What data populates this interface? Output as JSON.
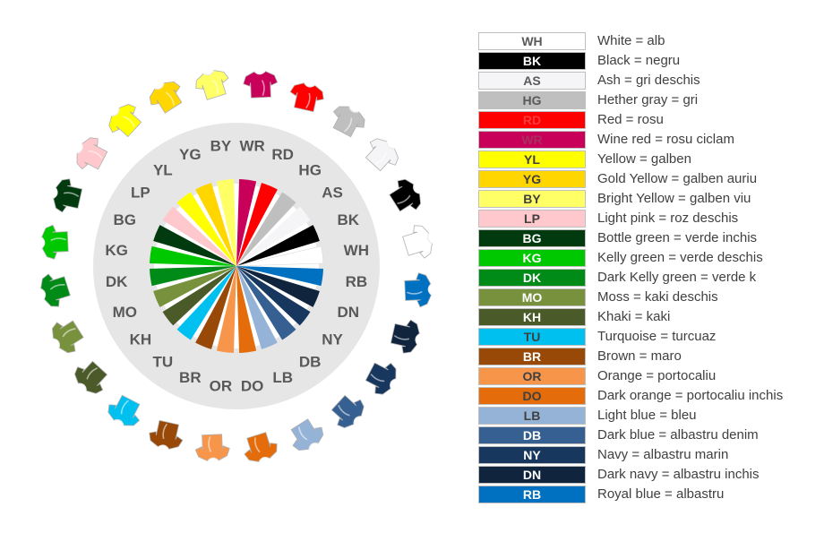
{
  "colors": [
    {
      "code": "WH",
      "label": "White = alb",
      "color": "#ffffff",
      "text_color": "#595959"
    },
    {
      "code": "BK",
      "label": "Black = negru",
      "color": "#000000",
      "text_color": "#ffffff"
    },
    {
      "code": "AS",
      "label": "Ash = gri deschis",
      "color": "#f5f5f7",
      "text_color": "#595959"
    },
    {
      "code": "HG",
      "label": "Hether gray = gri",
      "color": "#bfbfbf",
      "text_color": "#595959"
    },
    {
      "code": "RD",
      "label": "Red = rosu",
      "color": "#ff0000",
      "text_color": "#ff3c3c"
    },
    {
      "code": "WR",
      "label": "Wine red = rosu ciclam",
      "color": "#c8005a",
      "text_color": "#a83060"
    },
    {
      "code": "YL",
      "label": "Yellow = galben",
      "color": "#ffff00",
      "text_color": "#404040"
    },
    {
      "code": "YG",
      "label": "Gold Yellow = galben auriu",
      "color": "#ffd600",
      "text_color": "#404040"
    },
    {
      "code": "BY",
      "label": "Bright Yellow = galben viu",
      "color": "#ffff66",
      "text_color": "#404040"
    },
    {
      "code": "LP",
      "label": "Light pink = roz deschis",
      "color": "#ffc8cd",
      "text_color": "#404040"
    },
    {
      "code": "BG",
      "label": "Bottle green = verde inchis",
      "color": "#003a0e",
      "text_color": "#ffffff"
    },
    {
      "code": "KG",
      "label": "Kelly green = verde deschis",
      "color": "#00c800",
      "text_color": "#ffffff"
    },
    {
      "code": "DK",
      "label": "Dark Kelly green = verde k",
      "color": "#008a17",
      "text_color": "#ffffff"
    },
    {
      "code": "MO",
      "label": "Moss = kaki deschis",
      "color": "#78913c",
      "text_color": "#ffffff"
    },
    {
      "code": "KH",
      "label": "Khaki = kaki",
      "color": "#4a5a28",
      "text_color": "#ffffff"
    },
    {
      "code": "TU",
      "label": "Turquoise = turcuaz",
      "color": "#00c0f0",
      "text_color": "#404040"
    },
    {
      "code": "BR",
      "label": "Brown = maro",
      "color": "#984807",
      "text_color": "#ffffff"
    },
    {
      "code": "OR",
      "label": "Orange = portocaliu",
      "color": "#f7964a",
      "text_color": "#404040"
    },
    {
      "code": "DO",
      "label": "Dark orange = portocaliu inchis",
      "color": "#e46c0a",
      "text_color": "#404040"
    },
    {
      "code": "LB",
      "label": "Light blue = bleu",
      "color": "#95b3d7",
      "text_color": "#404040"
    },
    {
      "code": "DB",
      "label": "Dark blue = albastru denim",
      "color": "#366092",
      "text_color": "#ffffff"
    },
    {
      "code": "NY",
      "label": "Navy = albastru marin",
      "color": "#17375e",
      "text_color": "#ffffff"
    },
    {
      "code": "DN",
      "label": "Dark navy = albastru inchis",
      "color": "#10243e",
      "text_color": "#ffffff"
    },
    {
      "code": "RB",
      "label": "Royal blue = albastru",
      "color": "#0070c0",
      "text_color": "#ffffff"
    }
  ],
  "wheel_order": [
    "WR",
    "RD",
    "HG",
    "AS",
    "BK",
    "WH",
    "RB",
    "DN",
    "NY",
    "DB",
    "LB",
    "DO",
    "OR",
    "BR",
    "TU",
    "KH",
    "MO",
    "DK",
    "KG",
    "BG",
    "LP",
    "YL",
    "YG",
    "BY"
  ],
  "theme": {
    "ring_fill": "#e6e6e6",
    "label_color": "#595959",
    "shirt_outline": "#b0b0b0"
  },
  "icons": {
    "shirt": "tshirt-icon"
  }
}
